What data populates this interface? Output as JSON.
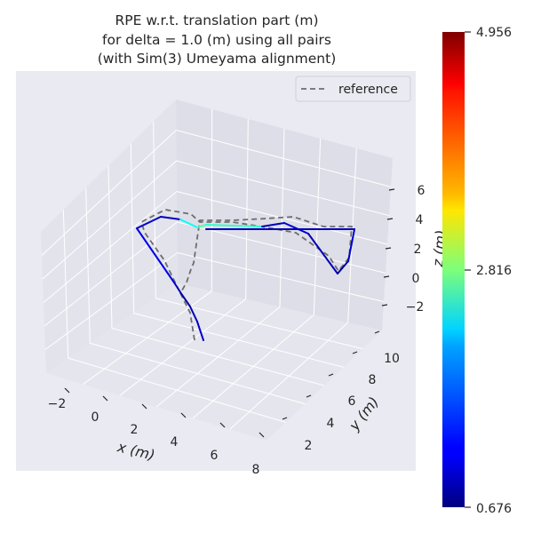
{
  "chart_data": {
    "type": "line",
    "projection": "3d",
    "title_lines": [
      "RPE w.r.t. translation part (m)",
      "for delta = 1.0 (m) using all pairs",
      "(with Sim(3) Umeyama alignment)"
    ],
    "xlabel": "x (m)",
    "ylabel": "y (m)",
    "zlabel": "z (m)",
    "x_ticks": [
      "−2",
      "0",
      "2",
      "4",
      "6",
      "8"
    ],
    "y_ticks": [
      "2",
      "4",
      "6",
      "8",
      "10"
    ],
    "z_ticks": [
      "−2",
      "0",
      "2",
      "4",
      "6"
    ],
    "legend": {
      "entries": [
        "reference"
      ],
      "placement": "top-right"
    },
    "colorbar": {
      "colormap": "jet",
      "min": 0.676,
      "max": 4.956,
      "labels": [
        "4.956",
        "2.816",
        "0.676"
      ]
    },
    "series": [
      {
        "name": "reference",
        "style": "dashed",
        "color": "#6e6e6e"
      },
      {
        "style": "solid",
        "colormap_values": [
          1.0,
          0.9,
          0.8,
          0.9,
          1.1,
          1.0,
          0.9,
          2.3,
          2.6,
          2.5,
          0.9,
          1.0,
          0.9,
          0.8,
          1.0,
          0.9,
          0.9,
          0.9
        ]
      }
    ]
  }
}
